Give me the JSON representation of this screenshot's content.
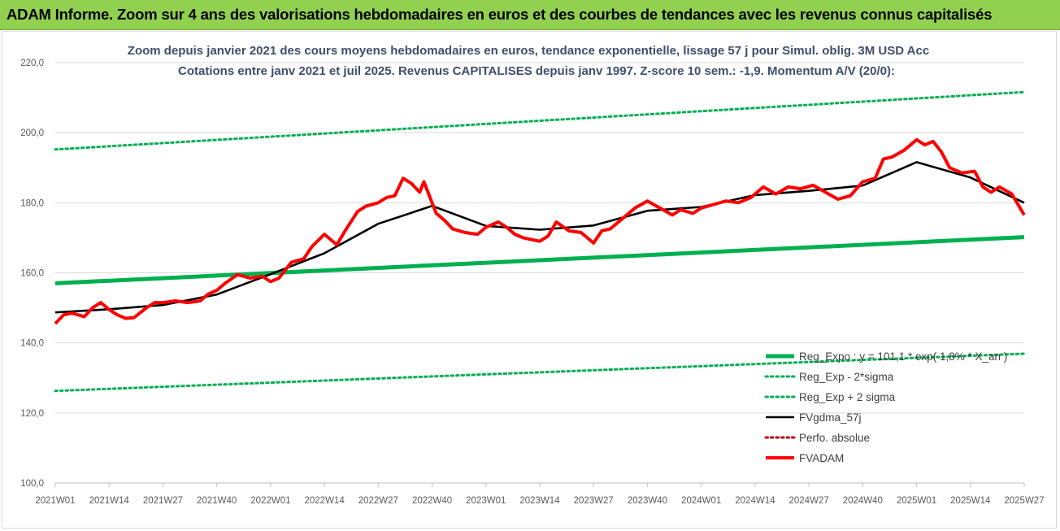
{
  "banner": {
    "title": "ADAM Informe. Zoom sur 4 ans des valorisations hebdomadaires en euros et des courbes de tendances avec les revenus connus capitalisés"
  },
  "colors": {
    "banner_bg": "#92D050",
    "trend": "#00B050",
    "fv": "#FF0000",
    "gdma": "#000000",
    "perfo": "#C00000"
  },
  "chart_data": {
    "type": "line",
    "title": "Zoom depuis janvier 2021 des cours moyens hebdomadaires en euros, tendance exponentielle, lissage 57 j pour Simul. oblig. 3M USD Acc",
    "subtitle": "Cotations entre janv 2021 et juil 2025. Revenus CAPITALISES depuis janv 1997. Z-score 10 sem.: -1,9. Momentum A/V (20/0):",
    "ylim": [
      100,
      220
    ],
    "yticks": [
      "100,0",
      "120,0",
      "140,0",
      "160,0",
      "180,0",
      "200,0",
      "220,0"
    ],
    "xticks": [
      "2021W01",
      "2021W14",
      "2021W27",
      "2021W40",
      "2022W01",
      "2022W14",
      "2022W27",
      "2022W40",
      "2023W01",
      "2023W14",
      "2023W27",
      "2023W40",
      "2024W01",
      "2024W14",
      "2024W27",
      "2024W40",
      "2025W01",
      "2025W14",
      "2025W27"
    ],
    "grid": "horizontal",
    "legend_position": "bottom-right",
    "series": [
      {
        "name": "Reg_Expo : y = 101,1 * exp( 1,8% * X_an )",
        "style": "solid-thick",
        "color": "#00B050",
        "x": [
          "2021W01",
          "2025W27"
        ],
        "values": [
          157.0,
          170.2
        ]
      },
      {
        "name": "Reg_Exp - 2*sigma",
        "style": "dotted",
        "color": "#00B050",
        "x": [
          "2021W01",
          "2025W27"
        ],
        "values": [
          126.3,
          136.9
        ]
      },
      {
        "name": "Reg_Exp + 2 sigma",
        "style": "dotted",
        "color": "#00B050",
        "x": [
          "2021W01",
          "2025W27"
        ],
        "values": [
          195.2,
          211.6
        ]
      },
      {
        "name": "FVgdma_57j",
        "style": "solid",
        "color": "#000000",
        "x": [
          "2021W01",
          "2021W14",
          "2021W27",
          "2021W40",
          "2022W01",
          "2022W14",
          "2022W27",
          "2022W40",
          "2023W01",
          "2023W14",
          "2023W27",
          "2023W40",
          "2024W01",
          "2024W14",
          "2024W27",
          "2024W40",
          "2025W01",
          "2025W14",
          "2025W27"
        ],
        "values": [
          148.7,
          149.6,
          150.8,
          153.8,
          159.6,
          165.6,
          174.0,
          179.1,
          173.4,
          172.3,
          173.5,
          177.7,
          178.8,
          182.2,
          183.4,
          184.9,
          191.6,
          187.2,
          180.0
        ]
      },
      {
        "name": "Perfo. absolue",
        "style": "dotted",
        "color": "#C00000",
        "x": [],
        "values": []
      },
      {
        "name": "FVADAM",
        "style": "solid-thick",
        "color": "#FF0000",
        "x": [
          "2021W01",
          "2021W03",
          "2021W05",
          "2021W08",
          "2021W10",
          "2021W12",
          "2021W14",
          "2021W16",
          "2021W18",
          "2021W20",
          "2021W23",
          "2021W25",
          "2021W27",
          "2021W30",
          "2021W33",
          "2021W36",
          "2021W38",
          "2021W40",
          "2021W42",
          "2021W45",
          "2021W48",
          "2021W51",
          "2022W01",
          "2022W03",
          "2022W06",
          "2022W09",
          "2022W11",
          "2022W14",
          "2022W17",
          "2022W19",
          "2022W22",
          "2022W24",
          "2022W27",
          "2022W29",
          "2022W31",
          "2022W33",
          "2022W35",
          "2022W37",
          "2022W38",
          "2022W39",
          "2022W41",
          "2022W43",
          "2022W45",
          "2022W48",
          "2022W51",
          "2023W01",
          "2023W04",
          "2023W06",
          "2023W08",
          "2023W10",
          "2023W12",
          "2023W14",
          "2023W16",
          "2023W18",
          "2023W21",
          "2023W24",
          "2023W27",
          "2023W29",
          "2023W31",
          "2023W34",
          "2023W37",
          "2023W40",
          "2023W43",
          "2023W46",
          "2023W48",
          "2023W51",
          "2024W01",
          "2024W04",
          "2024W07",
          "2024W10",
          "2024W13",
          "2024W16",
          "2024W19",
          "2024W22",
          "2024W25",
          "2024W28",
          "2024W31",
          "2024W34",
          "2024W37",
          "2024W40",
          "2024W43",
          "2024W45",
          "2024W47",
          "2024W50",
          "2025W01",
          "2025W03",
          "2025W05",
          "2025W07",
          "2025W09",
          "2025W12",
          "2025W15",
          "2025W17",
          "2025W19",
          "2025W21",
          "2025W24",
          "2025W26",
          "2025W27"
        ],
        "values": [
          145.5,
          148.0,
          148.5,
          147.5,
          150.0,
          151.5,
          149.5,
          148.0,
          147.0,
          147.2,
          150.0,
          151.5,
          151.5,
          152.0,
          151.5,
          152.0,
          154.0,
          155.0,
          157.0,
          159.5,
          158.5,
          159.0,
          157.5,
          158.5,
          163.0,
          164.0,
          167.5,
          171.0,
          168.0,
          172.0,
          177.5,
          179.0,
          180.0,
          181.5,
          182.0,
          187.0,
          185.5,
          183.0,
          186.0,
          183.0,
          177.0,
          175.0,
          172.5,
          171.5,
          171.0,
          173.0,
          174.5,
          173.0,
          171.0,
          170.0,
          169.5,
          169.0,
          170.5,
          174.5,
          172.0,
          171.5,
          168.5,
          172.0,
          172.5,
          175.5,
          178.5,
          180.5,
          178.5,
          176.5,
          178.0,
          177.0,
          178.5,
          179.5,
          180.5,
          180.0,
          181.5,
          184.5,
          182.5,
          184.5,
          184.0,
          185.0,
          183.0,
          181.0,
          182.0,
          186.0,
          187.0,
          192.5,
          193.0,
          195.0,
          198.0,
          196.5,
          197.5,
          194.5,
          190.0,
          188.5,
          189.0,
          184.5,
          183.0,
          184.5,
          182.5,
          178.5,
          176.5
        ]
      }
    ]
  }
}
